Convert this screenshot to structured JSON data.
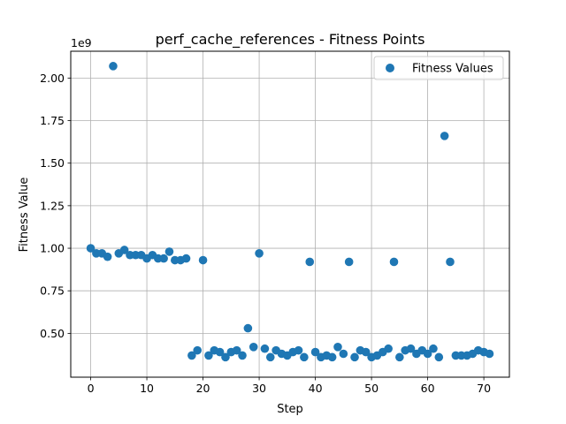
{
  "chart_data": {
    "type": "scatter",
    "title": "perf_cache_references - Fitness Points",
    "xlabel": "Step",
    "ylabel": "Fitness Value",
    "y_offset_label": "1e9",
    "xlim": [
      -3.55,
      74.55
    ],
    "ylim": [
      0.2425,
      2.1575
    ],
    "x_ticks": [
      0,
      10,
      20,
      30,
      40,
      50,
      60,
      70
    ],
    "y_ticks": [
      0.5,
      0.75,
      1.0,
      1.25,
      1.5,
      1.75,
      2.0
    ],
    "y_tick_labels": [
      "0.50",
      "0.75",
      "1.00",
      "1.25",
      "1.50",
      "1.75",
      "2.00"
    ],
    "grid": true,
    "legend": {
      "position": "top-right"
    },
    "color": "#1f77b4",
    "series": [
      {
        "name": "Fitness Values",
        "x": [
          0,
          1,
          2,
          3,
          4,
          5,
          6,
          7,
          8,
          9,
          10,
          11,
          12,
          13,
          14,
          15,
          16,
          17,
          18,
          19,
          20,
          21,
          22,
          23,
          24,
          25,
          26,
          27,
          28,
          29,
          30,
          31,
          32,
          33,
          34,
          35,
          36,
          37,
          38,
          39,
          40,
          41,
          42,
          43,
          44,
          45,
          46,
          47,
          48,
          49,
          50,
          51,
          52,
          53,
          54,
          55,
          56,
          57,
          58,
          59,
          60,
          61,
          62,
          63,
          64,
          65,
          66,
          67,
          68,
          69,
          70,
          71
        ],
        "y": [
          1.0,
          0.97,
          0.97,
          0.95,
          2.07,
          0.97,
          0.99,
          0.96,
          0.96,
          0.96,
          0.94,
          0.96,
          0.94,
          0.94,
          0.98,
          0.93,
          0.93,
          0.94,
          0.37,
          0.4,
          0.93,
          0.37,
          0.4,
          0.39,
          0.36,
          0.39,
          0.4,
          0.37,
          0.53,
          0.42,
          0.97,
          0.41,
          0.36,
          0.4,
          0.38,
          0.37,
          0.39,
          0.4,
          0.36,
          0.92,
          0.39,
          0.36,
          0.37,
          0.36,
          0.42,
          0.38,
          0.92,
          0.36,
          0.4,
          0.39,
          0.36,
          0.37,
          0.39,
          0.41,
          0.92,
          0.36,
          0.4,
          0.41,
          0.38,
          0.4,
          0.38,
          0.41,
          0.36,
          1.66,
          0.92,
          0.37,
          0.37,
          0.37,
          0.38,
          0.4,
          0.39,
          0.38
        ]
      }
    ]
  }
}
